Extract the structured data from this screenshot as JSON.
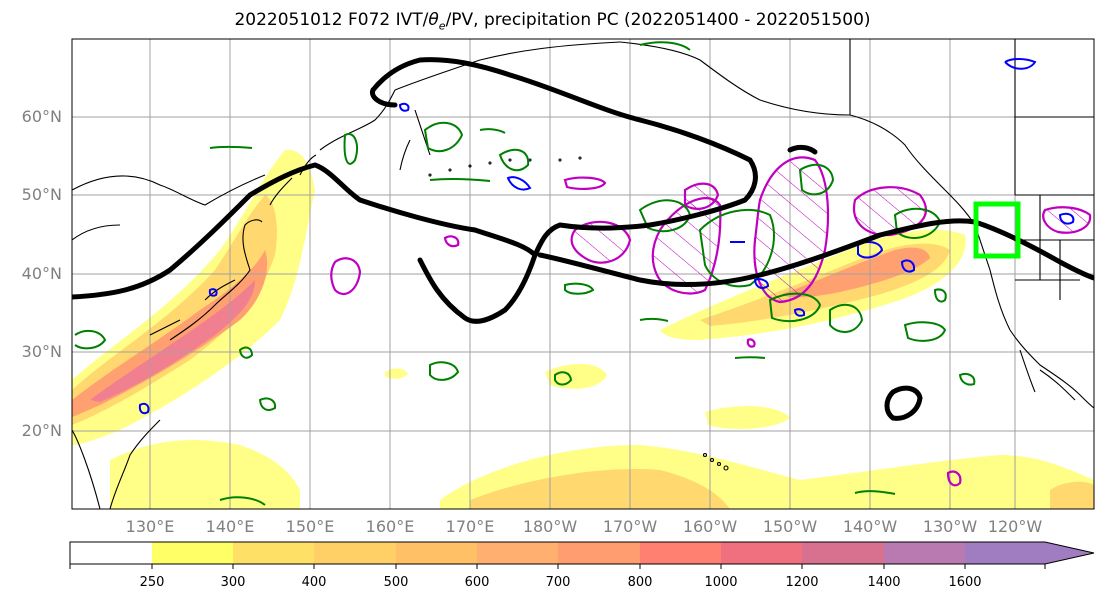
{
  "title_parts": {
    "prefix": "2022051012 F072 IVT/",
    "theta": "θ",
    "theta_sub": "e",
    "suffix": "/PV, precipitation PC (2022051400 - 2022051500)"
  },
  "map": {
    "lat_labels": [
      "60°N",
      "50°N",
      "40°N",
      "30°N",
      "20°N"
    ],
    "lon_labels": [
      "130°E",
      "140°E",
      "150°E",
      "160°E",
      "170°E",
      "180°W",
      "170°W",
      "160°W",
      "150°W",
      "140°W",
      "130°W",
      "120°W"
    ],
    "graticule": "on",
    "overlay_colors": {
      "jet_contour": "#000000",
      "theta_e_contour": "#008000",
      "pv_contour": "#0000ff",
      "precip_pc_contour": "#c000c0",
      "target_box": "#00ff00"
    }
  },
  "colorbar": {
    "ticks": [
      "250",
      "300",
      "400",
      "500",
      "600",
      "700",
      "800",
      "1000",
      "1200",
      "1400",
      "1600"
    ],
    "colors": [
      "#ffffff",
      "#ffff66",
      "#ffe066",
      "#ffd066",
      "#ffc066",
      "#ffb070",
      "#ff9c70",
      "#ff8070",
      "#f07080",
      "#d87090",
      "#b87ab0",
      "#a07cc0"
    ]
  }
}
